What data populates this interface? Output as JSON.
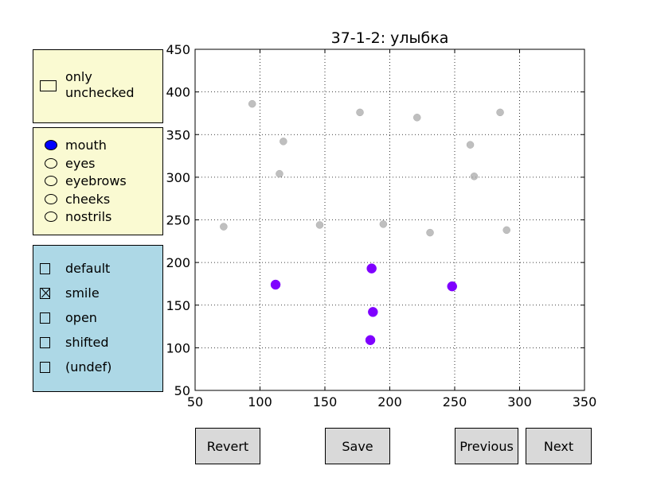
{
  "only_checkbox": {
    "label": "only\nunchecked",
    "checked": false
  },
  "feature_radio": {
    "options": [
      "mouth",
      "eyes",
      "eyebrows",
      "cheeks",
      "nostrils"
    ],
    "selected": "mouth",
    "selected_color": "#0000ff"
  },
  "label_checks": {
    "options": [
      "default",
      "smile",
      "open",
      "shifted",
      "(undef)"
    ],
    "checked": [
      "smile"
    ]
  },
  "panel_colors": {
    "top": "#fafad2",
    "bottom": "#add8e6"
  },
  "buttons": {
    "revert": "Revert",
    "save": "Save",
    "previous": "Previous",
    "next": "Next"
  },
  "chart_data": {
    "type": "scatter",
    "title": "37-1-2: улыбка",
    "xlabel": "",
    "ylabel": "",
    "xlim": [
      50,
      350
    ],
    "ylim": [
      50,
      450
    ],
    "xticks": [
      50,
      100,
      150,
      200,
      250,
      300,
      350
    ],
    "yticks": [
      50,
      100,
      150,
      200,
      250,
      300,
      350,
      400,
      450
    ],
    "grid": true,
    "series": [
      {
        "color": "#aaaaaa",
        "points": [
          [
            94,
            386
          ],
          [
            177,
            376
          ],
          [
            221,
            370
          ],
          [
            285,
            376
          ],
          [
            118,
            342
          ],
          [
            262,
            338
          ],
          [
            115,
            304
          ],
          [
            265,
            301
          ],
          [
            72,
            242
          ],
          [
            146,
            244
          ],
          [
            195,
            245
          ],
          [
            231,
            235
          ],
          [
            290,
            238
          ]
        ]
      },
      {
        "color": "#7f00ff",
        "points": [
          [
            112,
            174
          ],
          [
            186,
            193
          ],
          [
            248,
            172
          ],
          [
            187,
            142
          ],
          [
            185,
            109
          ]
        ]
      }
    ]
  }
}
